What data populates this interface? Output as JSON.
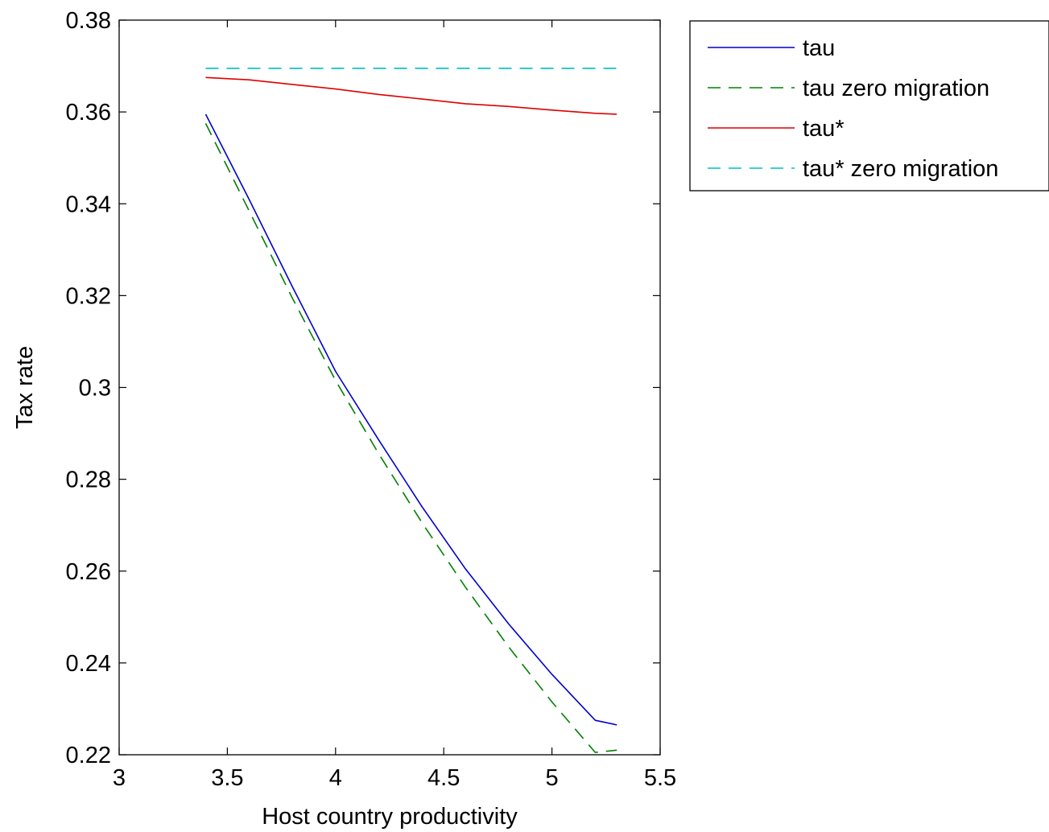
{
  "chart_data": {
    "type": "line",
    "title": "",
    "xlabel": "Host country productivity",
    "ylabel": "Tax rate",
    "xlim": [
      3,
      5.5
    ],
    "ylim": [
      0.22,
      0.38
    ],
    "xticks": [
      3,
      3.5,
      4,
      4.5,
      5,
      5.5
    ],
    "xtick_labels": [
      "3",
      "3.5",
      "4",
      "4.5",
      "5",
      "5.5"
    ],
    "yticks": [
      0.22,
      0.24,
      0.26,
      0.28,
      0.3,
      0.32,
      0.34,
      0.36,
      0.38
    ],
    "ytick_labels": [
      "0.22",
      "0.24",
      "0.26",
      "0.28",
      "0.3",
      "0.32",
      "0.34",
      "0.36",
      "0.38"
    ],
    "grid": false,
    "legend_position": "outside-top-right",
    "series": [
      {
        "name": "tau",
        "color": "#0000cc",
        "style": "solid",
        "x": [
          3.4,
          3.6,
          3.8,
          4.0,
          4.2,
          4.4,
          4.6,
          4.8,
          5.0,
          5.2,
          5.3
        ],
        "y": [
          0.3595,
          0.341,
          0.322,
          0.3035,
          0.2885,
          0.274,
          0.2605,
          0.2485,
          0.2375,
          0.2275,
          0.2265
        ]
      },
      {
        "name": "tau zero migration",
        "color": "#008000",
        "style": "dashed",
        "x": [
          3.4,
          3.6,
          3.8,
          4.0,
          4.2,
          4.4,
          4.6,
          4.8,
          5.0,
          5.2,
          5.3
        ],
        "y": [
          0.3575,
          0.3385,
          0.3195,
          0.3015,
          0.2855,
          0.2705,
          0.2565,
          0.2435,
          0.2315,
          0.2205,
          0.221
        ]
      },
      {
        "name": "tau*",
        "color": "#dd0000",
        "style": "solid",
        "x": [
          3.4,
          3.6,
          3.8,
          4.0,
          4.2,
          4.4,
          4.6,
          4.8,
          5.0,
          5.2,
          5.3
        ],
        "y": [
          0.3675,
          0.367,
          0.366,
          0.365,
          0.3638,
          0.3628,
          0.3618,
          0.3612,
          0.3604,
          0.3597,
          0.3595
        ]
      },
      {
        "name": "tau* zero migration",
        "color": "#00bfbf",
        "style": "dashed",
        "x": [
          3.4,
          3.6,
          3.8,
          4.0,
          4.2,
          4.4,
          4.6,
          4.8,
          5.0,
          5.2,
          5.3
        ],
        "y": [
          0.3695,
          0.3695,
          0.3695,
          0.3695,
          0.3695,
          0.3695,
          0.3695,
          0.3695,
          0.3695,
          0.3695,
          0.3695
        ]
      }
    ]
  }
}
